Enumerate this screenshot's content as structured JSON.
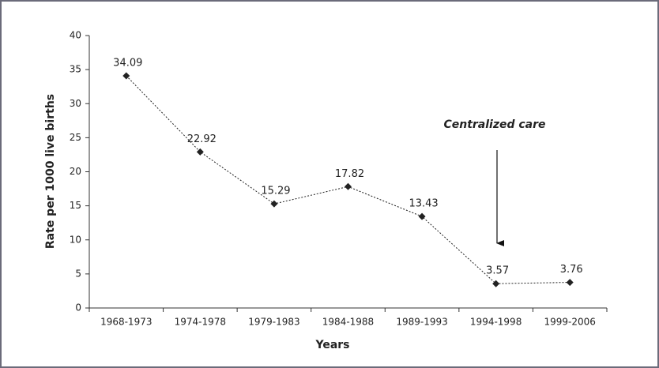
{
  "chart_data": {
    "type": "line",
    "x_label": "Years",
    "y_label": "Rate per 1000 live births",
    "annotation": "Centralized care",
    "categories": [
      "1968-1973",
      "1974-1978",
      "1979-1983",
      "1984-1988",
      "1989-1993",
      "1994-1998",
      "1999-2006"
    ],
    "values": [
      34.09,
      22.92,
      15.29,
      17.82,
      13.43,
      3.57,
      3.76
    ],
    "value_labels": [
      "34.09",
      "22.92",
      "15.29",
      "17.82",
      "13.43",
      "3.57",
      "3.76"
    ],
    "color": "#222222",
    "ylim": [
      0,
      40
    ],
    "yticks": [
      0,
      5,
      10,
      15,
      20,
      25,
      30,
      35,
      40
    ],
    "grid": false
  }
}
